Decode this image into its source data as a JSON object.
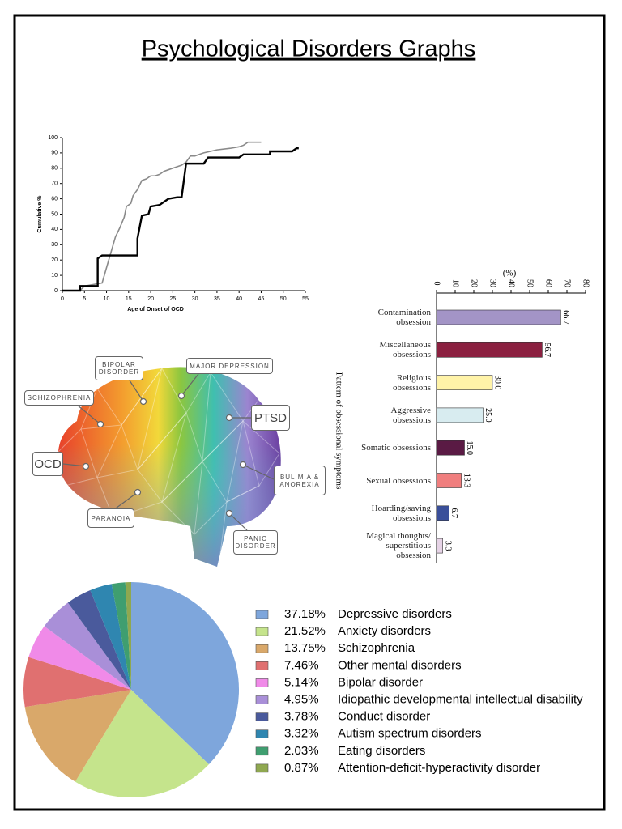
{
  "title": "Psychological Disorders Graphs",
  "chart_data": [
    {
      "type": "line",
      "x_label": "Age of Onset of OCD",
      "y_label": "Cumulative %",
      "xlim": [
        0,
        55
      ],
      "ylim": [
        0,
        100
      ],
      "xticks": [
        0,
        5,
        10,
        15,
        20,
        25,
        30,
        35,
        40,
        45,
        50,
        55
      ],
      "yticks": [
        0,
        10,
        20,
        30,
        40,
        50,
        60,
        70,
        80,
        90,
        100
      ],
      "series": [
        {
          "color": "#8a8a8a",
          "line_width": 1.6,
          "x": [
            0,
            4,
            5,
            9,
            10,
            11,
            12,
            13,
            14,
            14.5,
            15.5,
            16,
            17,
            18,
            19,
            20,
            21,
            22,
            23,
            24,
            25,
            26,
            27,
            28,
            29,
            30,
            31,
            32,
            35,
            38,
            40,
            41,
            42,
            45
          ],
          "values": [
            0,
            0,
            3,
            5,
            15,
            25,
            35,
            41,
            48,
            55,
            57,
            62,
            66,
            72,
            73,
            75,
            75,
            76,
            78,
            79,
            80,
            81,
            82,
            84,
            88,
            88,
            89,
            90,
            92,
            93,
            94,
            95,
            97,
            97
          ]
        },
        {
          "color": "#000000",
          "line_width": 2.4,
          "x": [
            0,
            4,
            4,
            8,
            8,
            9,
            17,
            17,
            18,
            19.5,
            20,
            22,
            24,
            26,
            27,
            28,
            32,
            33,
            40,
            41,
            47,
            47,
            52,
            53,
            53.5
          ],
          "values": [
            0,
            0,
            3,
            3,
            21,
            23,
            23,
            34,
            49,
            50,
            55,
            56,
            60,
            61,
            61,
            83,
            83,
            87,
            87,
            89,
            89,
            91,
            91,
            93,
            93
          ]
        }
      ]
    },
    {
      "type": "barh",
      "x_label": "(%)",
      "y_label": "Pattern of obsessional symptoms",
      "xlim": [
        0,
        80
      ],
      "xticks": [
        0,
        10,
        20,
        30,
        40,
        50,
        60,
        70,
        80
      ],
      "categories": [
        "Contamination\nobsession",
        "Miscellaneous\nobsessions",
        "Religious\nobsessions",
        "Aggressive\nobsessions",
        "Somatic obsessions",
        "Sexual obsessions",
        "Hoarding/saving\nobsessions",
        "Magical thoughts/\nsuperstitious\nobsession"
      ],
      "values": [
        66.7,
        56.7,
        30.0,
        25.0,
        15.0,
        13.3,
        6.7,
        3.3
      ],
      "value_labels": [
        "66.7",
        "56.7",
        "30.0",
        "25.0",
        "15.0",
        "13.3",
        "6.7",
        "3.3"
      ],
      "colors": [
        "#a394c6",
        "#8b2040",
        "#fff3a8",
        "#d8ecf0",
        "#5a1a44",
        "#f07e7e",
        "#3a4f9a",
        "#e6d3e6"
      ]
    },
    {
      "type": "pie",
      "categories": [
        "Depressive disorders",
        "Anxiety disorders",
        "Schizophrenia",
        "Other mental disorders",
        "Bipolar disorder",
        "Idiopathic developmental intellectual disability",
        "Conduct disorder",
        "Autism spectrum disorders",
        "Eating disorders",
        "Attention-deficit-hyperactivity disorder"
      ],
      "values": [
        37.18,
        21.52,
        13.75,
        7.46,
        5.14,
        4.95,
        3.78,
        3.32,
        2.03,
        0.87
      ],
      "value_labels": [
        "37.18%",
        "21.52%",
        "13.75%",
        "7.46%",
        "5.14%",
        "4.95%",
        "3.78%",
        "3.32%",
        "2.03%",
        "0.87%"
      ],
      "colors": [
        "#7ea6dc",
        "#c5e48c",
        "#d9a86a",
        "#e07070",
        "#f08ae8",
        "#a98fd8",
        "#4a5a9c",
        "#2f86b0",
        "#3f9e70",
        "#8fa850"
      ]
    }
  ],
  "brain_diagram": {
    "labels": [
      "BIPOLAR DISORDER",
      "MAJOR DEPRESSION",
      "SCHIZOPHRENIA",
      "PTSD",
      "OCD",
      "BULIMIA & ANOREXIA",
      "PARANOIA",
      "PANIC DISORDER"
    ]
  }
}
